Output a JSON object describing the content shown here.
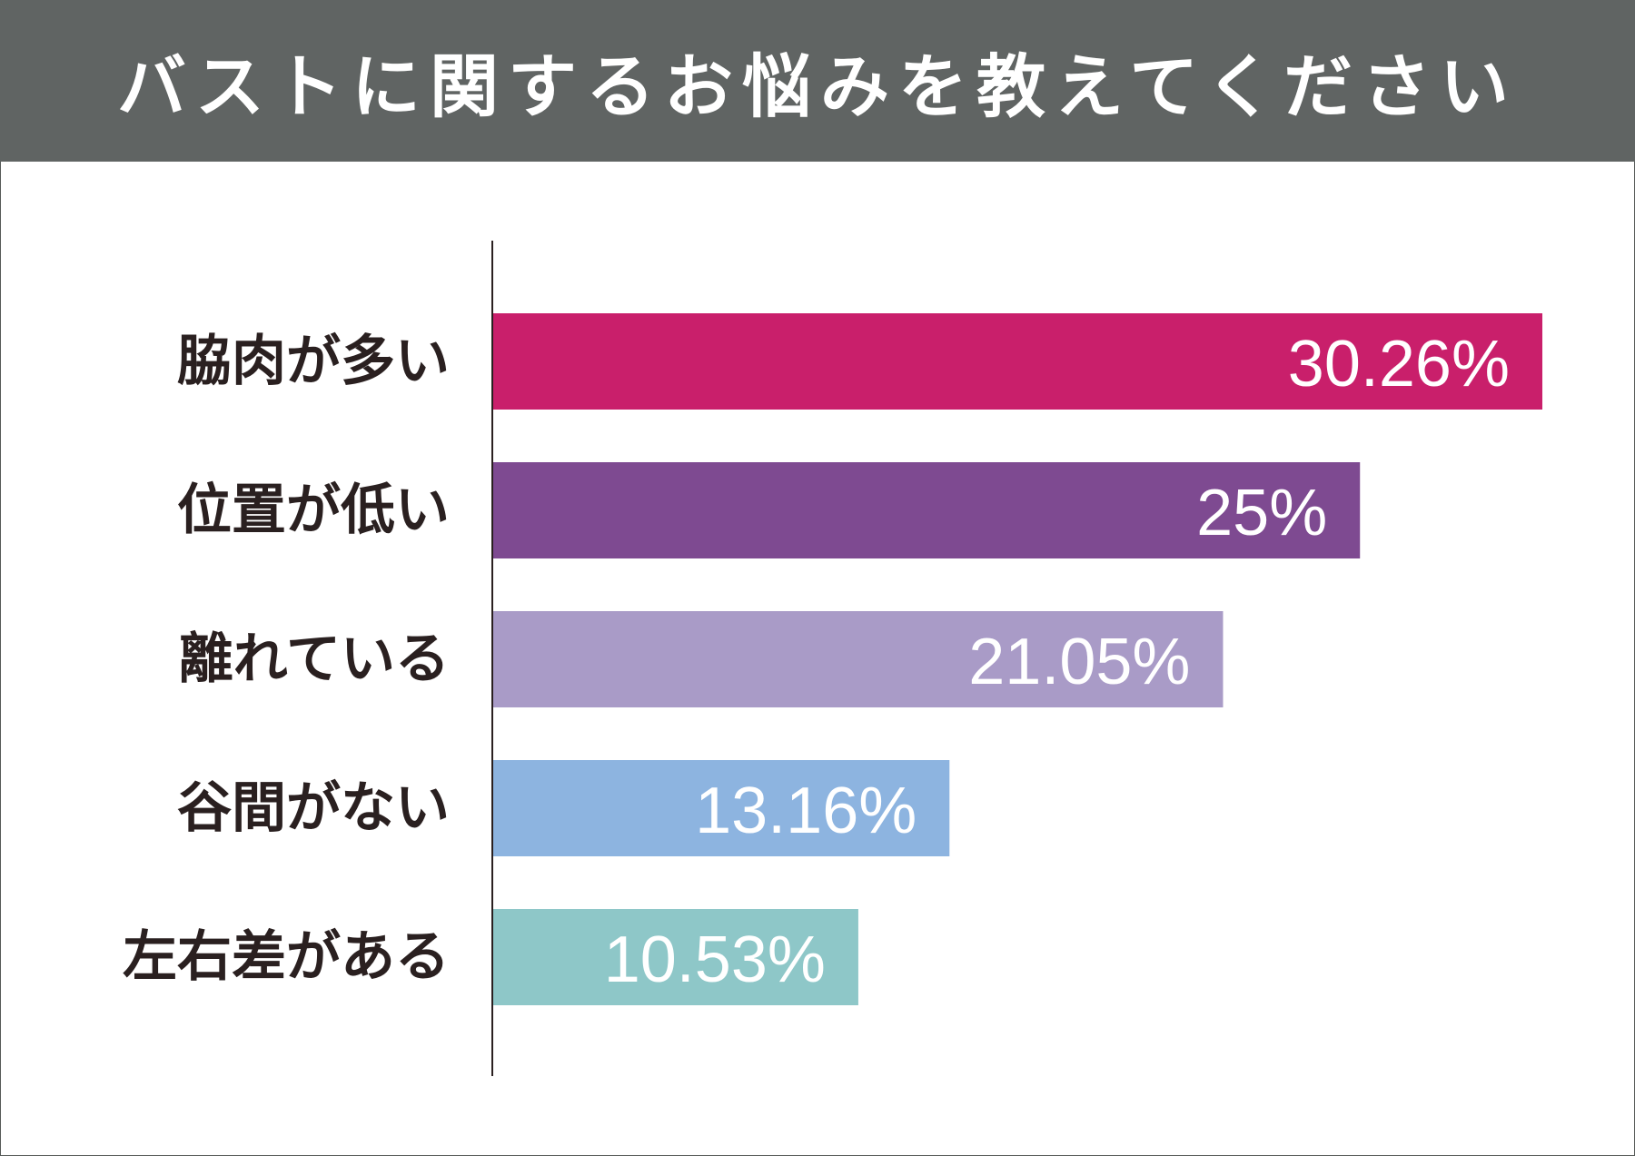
{
  "header": {
    "title": "バストに関するお悩みを教えてください"
  },
  "chart_data": {
    "type": "bar",
    "orientation": "horizontal",
    "title": "バストに関するお悩みを教えてください",
    "xlabel": "",
    "ylabel": "",
    "xlim": [
      0,
      30.26
    ],
    "grid": false,
    "categories": [
      "脇肉が多い",
      "位置が低い",
      "離れている",
      "谷間がない",
      "左右差がある"
    ],
    "values": [
      30.26,
      25,
      21.05,
      13.16,
      10.53
    ],
    "value_labels": [
      "30.26%",
      "25%",
      "21.05%",
      "13.16%",
      "10.53%"
    ],
    "colors": [
      "#c91f6b",
      "#7e4a91",
      "#a99bc7",
      "#8db4e0",
      "#8ec7c8"
    ]
  }
}
